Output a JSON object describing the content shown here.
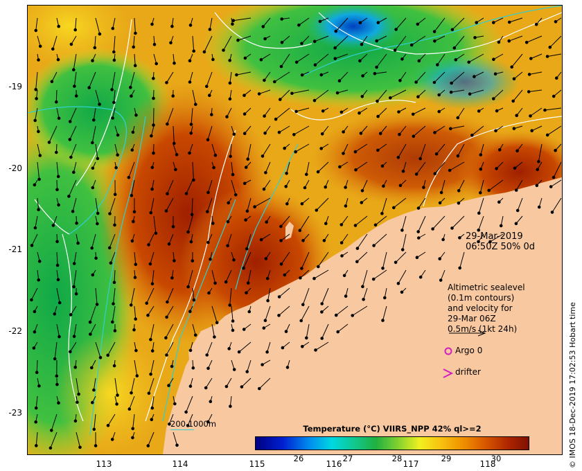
{
  "map": {
    "date": "29-Mar-2019",
    "time_line": "06:50Z  50% 0d",
    "lat_labels": [
      "-19",
      "-20",
      "-21",
      "-22",
      "-23"
    ],
    "lon_labels": [
      "113",
      "114",
      "115",
      "116",
      "117",
      "118"
    ]
  },
  "legend": {
    "lines": [
      "Altimetric sealevel",
      "(0.1m contours)",
      "and velocity for",
      "29-Mar 06Z",
      "0.5m/s (1kt 24h)"
    ],
    "argo_label": "Argo 0",
    "drifter_label": "drifter",
    "contour_label": "200  1000m"
  },
  "colorbar": {
    "title": "Temperature (°C) VIIRS_NPP 42% ql>=2",
    "ticks": [
      "26",
      "27",
      "28",
      "29",
      "30"
    ]
  },
  "copyright": "© IMOS 18-Dec-2019 17:02:53 Hobart time",
  "colors": {
    "land": "#f8c8a0",
    "warm": "#b03010",
    "cool": "#10a040",
    "contour": "#30d0d0",
    "argo": "#d020c0"
  }
}
